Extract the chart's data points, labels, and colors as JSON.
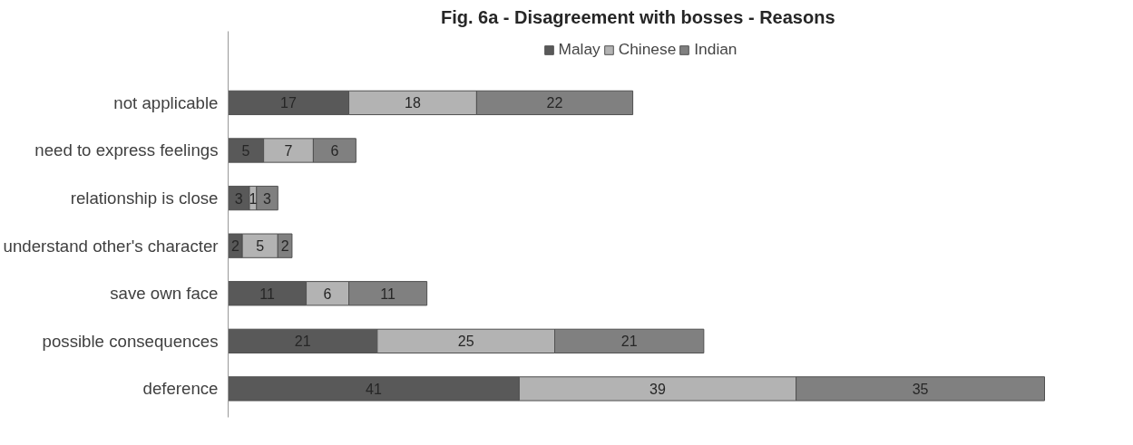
{
  "chart_data": {
    "type": "bar",
    "orientation": "horizontal",
    "stacked": true,
    "title": "Fig.  6a - Disagreement with bosses - Reasons",
    "categories": [
      "not applicable",
      "need to express feelings",
      "relationship is close",
      "understand other's character",
      "save own face",
      "possible consequences",
      "deference"
    ],
    "series": [
      {
        "name": "Malay",
        "color": "#595959",
        "values": [
          17,
          5,
          3,
          2,
          11,
          21,
          41
        ]
      },
      {
        "name": "Chinese",
        "color": "#b3b3b3",
        "values": [
          18,
          7,
          1,
          5,
          6,
          25,
          39
        ]
      },
      {
        "name": "Indian",
        "color": "#808080",
        "values": [
          22,
          6,
          3,
          2,
          11,
          21,
          35
        ]
      }
    ],
    "tick_labels": "y",
    "data_labels": true,
    "legend": "top",
    "grid": false
  }
}
